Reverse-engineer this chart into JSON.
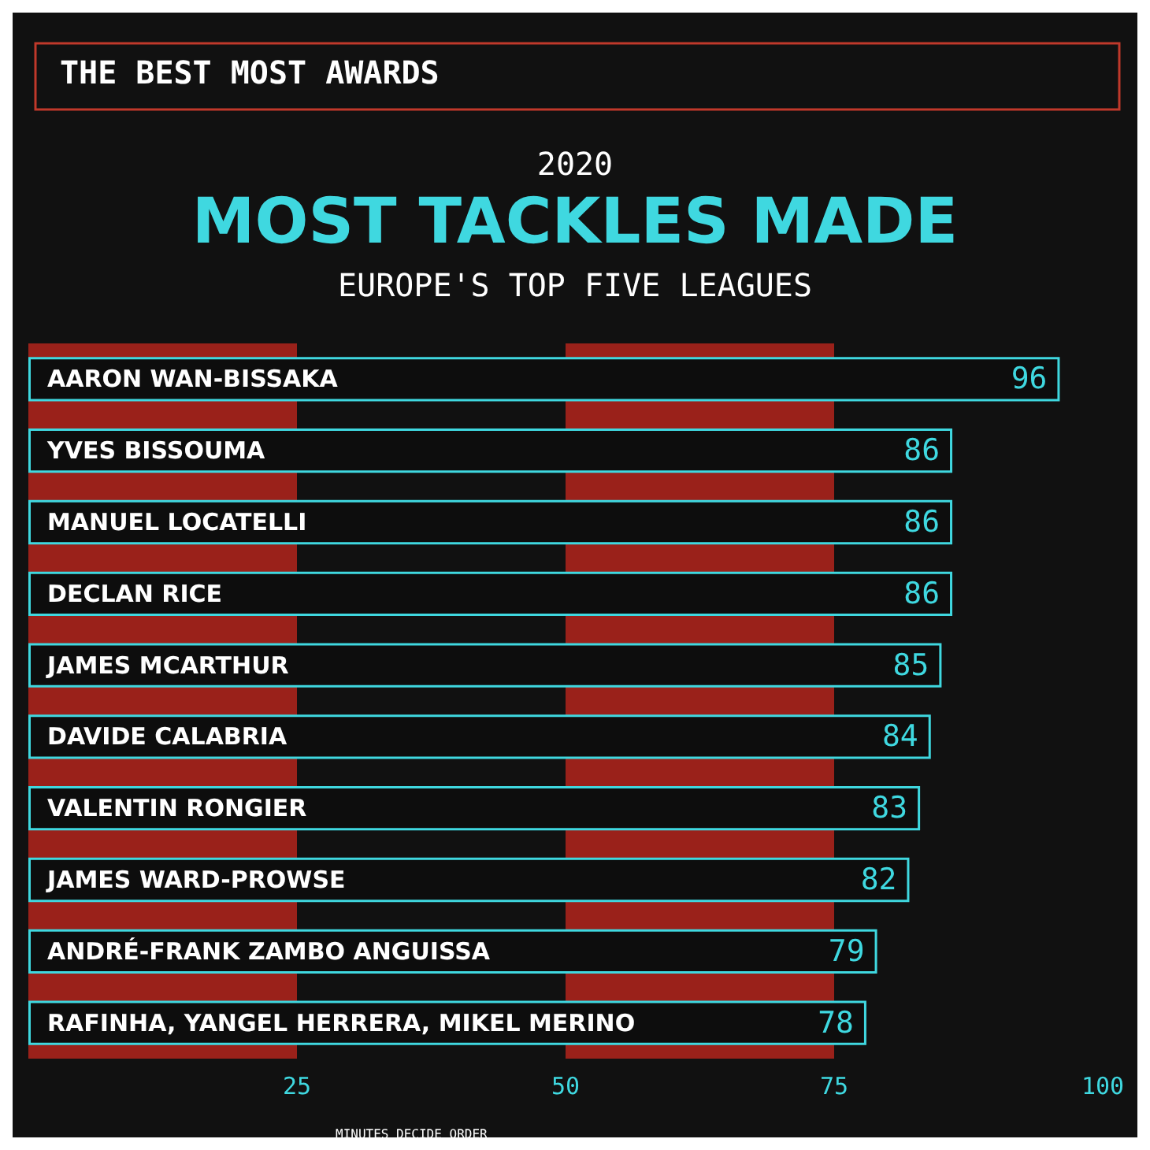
{
  "chart_data": {
    "type": "bar",
    "orientation": "horizontal",
    "title": "MOST TACKLES MADE",
    "subtitle": "EUROPE'S TOP FIVE LEAGUES",
    "annotations": [
      "THE BEST MOST AWARDS",
      "2020",
      "MINUTES DECIDE ORDER"
    ],
    "categories": [
      "AARON WAN-BISSAKA",
      "YVES BISSOUMA",
      "MANUEL LOCATELLI",
      "DECLAN RICE",
      "JAMES MCARTHUR",
      "DAVIDE CALABRIA",
      "VALENTIN RONGIER",
      "JAMES WARD-PROWSE",
      "ANDRÉ-FRANK ZAMBO ANGUISSA",
      "RAFINHA, YANGEL HERRERA, MIKEL MERINO"
    ],
    "values": [
      96,
      86,
      86,
      86,
      85,
      84,
      83,
      82,
      79,
      78
    ],
    "color": "#0d0d0d",
    "data_labels": true,
    "xlim": [
      0,
      100
    ],
    "xticks": [
      25,
      50,
      75,
      100
    ],
    "bands": [
      {
        "axis": "x",
        "from": 0,
        "to": 25,
        "color": "#b3241c"
      },
      {
        "axis": "x",
        "from": 50,
        "to": 75,
        "color": "#b3241c"
      }
    ],
    "grid": false
  }
}
